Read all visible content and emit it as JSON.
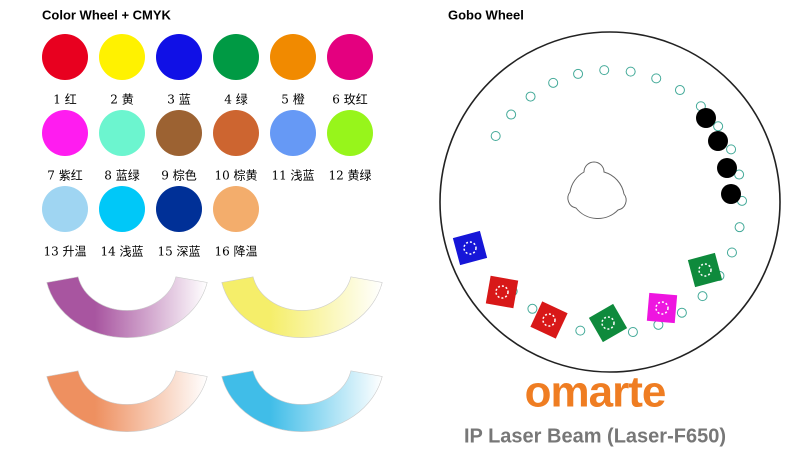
{
  "color_wheel": {
    "title": "Color Wheel + CMYK",
    "colors": [
      {
        "label": "1 红",
        "color": "#e8001f"
      },
      {
        "label": "2 黄",
        "color": "#fff200"
      },
      {
        "label": "3 蓝",
        "color": "#1010e6"
      },
      {
        "label": "4 绿",
        "color": "#009a44"
      },
      {
        "label": "5 橙",
        "color": "#f18a00"
      },
      {
        "label": "6 玫红",
        "color": "#e4007f"
      },
      {
        "label": "7 紫红",
        "color": "#ff1cf0"
      },
      {
        "label": "8 蓝绿",
        "color": "#6cf5cf"
      },
      {
        "label": "9 棕色",
        "color": "#9c6232"
      },
      {
        "label": "10 棕黄",
        "color": "#cd6530"
      },
      {
        "label": "11 浅蓝",
        "color": "#6699f5"
      },
      {
        "label": "12 黄绿",
        "color": "#97f51b"
      },
      {
        "label": "13 升温",
        "color": "#9fd5f2"
      },
      {
        "label": "14 浅蓝",
        "color": "#00c8f8"
      },
      {
        "label": "15 深蓝",
        "color": "#003097"
      },
      {
        "label": "16 降温",
        "color": "#f3ad6c"
      }
    ],
    "cmyk": [
      "#a855a0",
      "#f5ee6a",
      "#ee9060",
      "#40bde8"
    ]
  },
  "gobo_wheel": {
    "title": "Gobo Wheel"
  },
  "brand": {
    "logo": "omarte",
    "product": "IP Laser Beam  (Laser-F650)"
  }
}
